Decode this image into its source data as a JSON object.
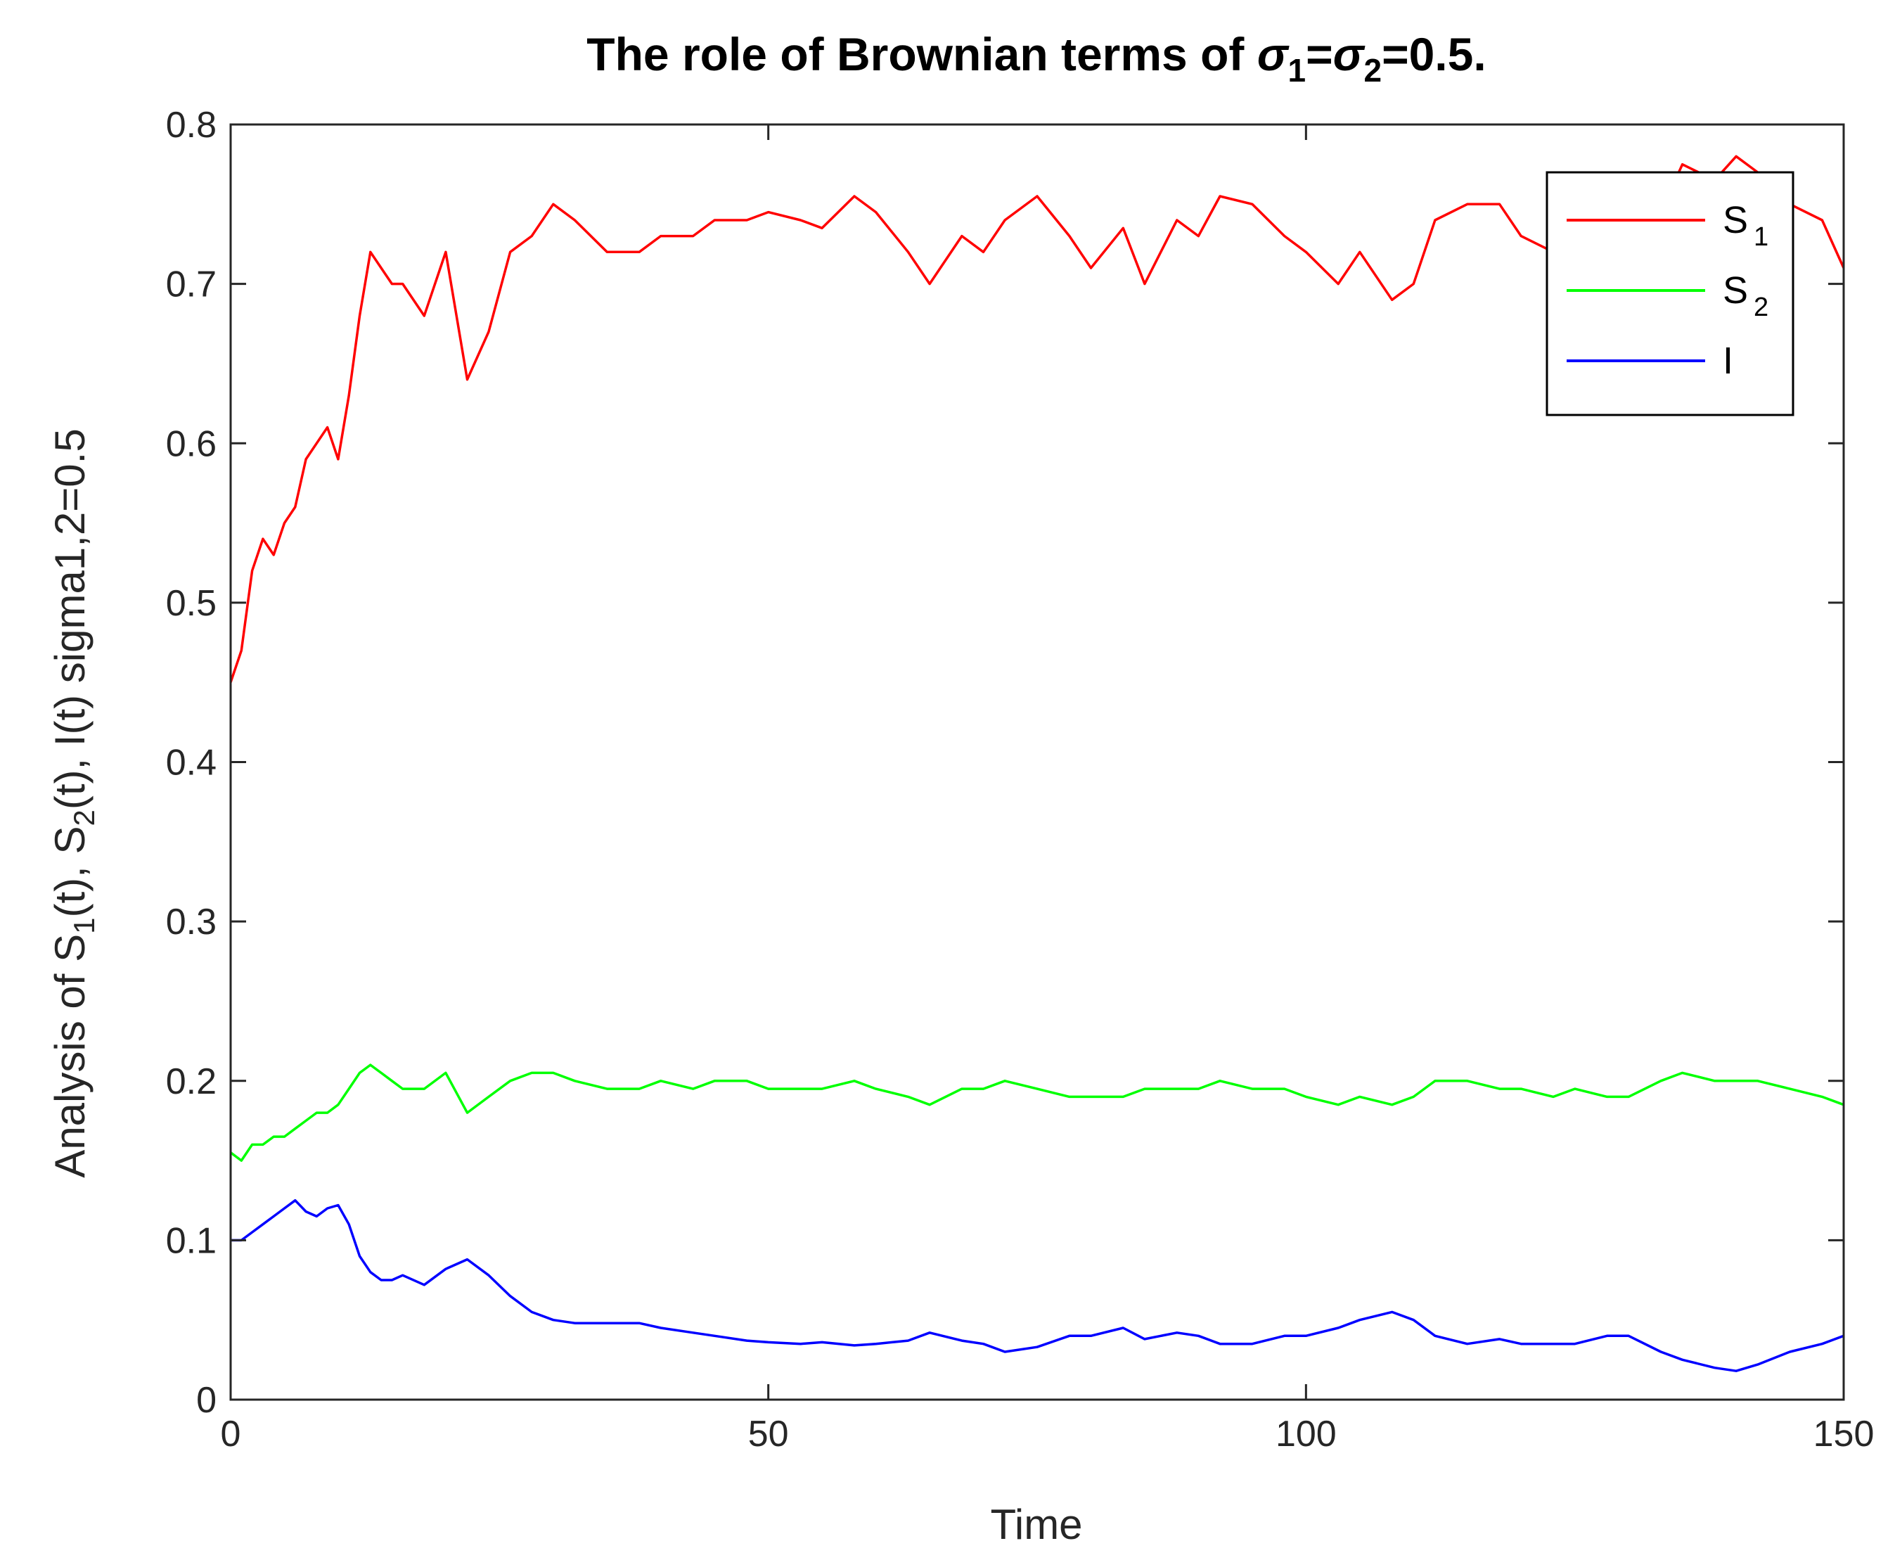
{
  "chart_data": {
    "type": "line",
    "title": {
      "prefix": "The role of Brownian terms of ",
      "sym1": "σ",
      "sub1": "1",
      "eq": "=",
      "sym2": "σ",
      "sub2": "2",
      "suffix": "=0.5."
    },
    "xlabel": "Time",
    "ylabel": {
      "p1": "Analysis of S",
      "s1": "1",
      "p2": "(t), S",
      "s2": "2",
      "p3": "(t), I(t) sigma1,2=0.5"
    },
    "xlim": [
      0,
      150
    ],
    "ylim": [
      0,
      0.8
    ],
    "xticks": [
      0,
      50,
      100,
      150
    ],
    "xtick_labels": [
      "0",
      "50",
      "100",
      "150"
    ],
    "yticks": [
      0,
      0.1,
      0.2,
      0.3,
      0.4,
      0.5,
      0.6,
      0.7,
      0.8
    ],
    "ytick_labels": [
      "0",
      "0.1",
      "0.2",
      "0.3",
      "0.4",
      "0.5",
      "0.6",
      "0.7",
      "0.8"
    ],
    "grid": false,
    "legend_position": "top-right",
    "x": [
      0,
      1,
      2,
      3,
      4,
      5,
      6,
      7,
      8,
      9,
      10,
      11,
      12,
      13,
      14,
      15,
      16,
      18,
      20,
      22,
      24,
      26,
      28,
      30,
      32,
      35,
      38,
      40,
      43,
      45,
      48,
      50,
      53,
      55,
      58,
      60,
      63,
      65,
      68,
      70,
      72,
      75,
      78,
      80,
      83,
      85,
      88,
      90,
      92,
      95,
      98,
      100,
      103,
      105,
      108,
      110,
      112,
      115,
      118,
      120,
      123,
      125,
      128,
      130,
      133,
      135,
      138,
      140,
      142,
      145,
      148,
      150
    ],
    "series": [
      {
        "name_main": "S",
        "name_sub": "1",
        "color": "#ff0000",
        "values": [
          0.45,
          0.47,
          0.52,
          0.54,
          0.53,
          0.55,
          0.56,
          0.59,
          0.6,
          0.61,
          0.59,
          0.63,
          0.68,
          0.72,
          0.71,
          0.7,
          0.7,
          0.68,
          0.72,
          0.64,
          0.67,
          0.72,
          0.73,
          0.75,
          0.74,
          0.72,
          0.72,
          0.73,
          0.73,
          0.74,
          0.74,
          0.745,
          0.74,
          0.735,
          0.755,
          0.745,
          0.72,
          0.7,
          0.73,
          0.72,
          0.74,
          0.755,
          0.73,
          0.71,
          0.735,
          0.7,
          0.74,
          0.73,
          0.755,
          0.75,
          0.73,
          0.72,
          0.7,
          0.72,
          0.69,
          0.7,
          0.74,
          0.75,
          0.75,
          0.73,
          0.72,
          0.75,
          0.74,
          0.74,
          0.745,
          0.775,
          0.765,
          0.78,
          0.77,
          0.75,
          0.74,
          0.71
        ]
      },
      {
        "name_main": "S",
        "name_sub": "2",
        "color": "#00ff00",
        "values": [
          0.155,
          0.15,
          0.16,
          0.16,
          0.165,
          0.165,
          0.17,
          0.175,
          0.18,
          0.18,
          0.185,
          0.195,
          0.205,
          0.21,
          0.205,
          0.2,
          0.195,
          0.195,
          0.205,
          0.18,
          0.19,
          0.2,
          0.205,
          0.205,
          0.2,
          0.195,
          0.195,
          0.2,
          0.195,
          0.2,
          0.2,
          0.195,
          0.195,
          0.195,
          0.2,
          0.195,
          0.19,
          0.185,
          0.195,
          0.195,
          0.2,
          0.195,
          0.19,
          0.19,
          0.19,
          0.195,
          0.195,
          0.195,
          0.2,
          0.195,
          0.195,
          0.19,
          0.185,
          0.19,
          0.185,
          0.19,
          0.2,
          0.2,
          0.195,
          0.195,
          0.19,
          0.195,
          0.19,
          0.19,
          0.2,
          0.205,
          0.2,
          0.2,
          0.2,
          0.195,
          0.19,
          0.185
        ]
      },
      {
        "name_main": "I",
        "name_sub": "",
        "color": "#0000ff",
        "values": [
          0.1,
          0.1,
          0.105,
          0.11,
          0.115,
          0.12,
          0.125,
          0.118,
          0.115,
          0.12,
          0.122,
          0.11,
          0.09,
          0.08,
          0.075,
          0.075,
          0.078,
          0.072,
          0.082,
          0.088,
          0.078,
          0.065,
          0.055,
          0.05,
          0.048,
          0.048,
          0.048,
          0.045,
          0.042,
          0.04,
          0.037,
          0.036,
          0.035,
          0.036,
          0.034,
          0.035,
          0.037,
          0.042,
          0.037,
          0.035,
          0.03,
          0.033,
          0.04,
          0.04,
          0.045,
          0.038,
          0.042,
          0.04,
          0.035,
          0.035,
          0.04,
          0.04,
          0.045,
          0.05,
          0.055,
          0.05,
          0.04,
          0.035,
          0.038,
          0.035,
          0.035,
          0.035,
          0.04,
          0.04,
          0.03,
          0.025,
          0.02,
          0.018,
          0.022,
          0.03,
          0.035,
          0.04
        ]
      }
    ]
  }
}
